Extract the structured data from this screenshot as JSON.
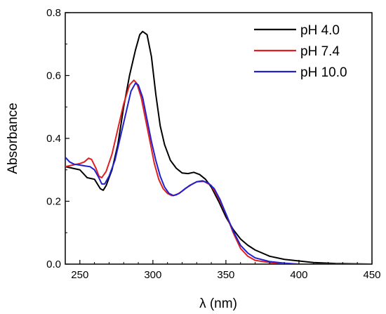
{
  "chart_data": {
    "type": "line",
    "title": "",
    "xlabel": "λ (nm)",
    "ylabel": "Absorbance",
    "xlim": [
      240,
      450
    ],
    "ylim": [
      0.0,
      0.8
    ],
    "x_ticks": [
      250,
      300,
      350,
      400,
      450
    ],
    "y_ticks": [
      0.0,
      0.2,
      0.4,
      0.6,
      0.8
    ],
    "x_tick_labels": [
      "250",
      "300",
      "350",
      "400",
      "450"
    ],
    "y_tick_labels": [
      "0.0",
      "0.2",
      "0.4",
      "0.6",
      "0.8"
    ],
    "grid": false,
    "legend_position": "top-right",
    "series": [
      {
        "name": "pH 4.0",
        "color": "#000000",
        "points": [
          [
            240,
            0.31
          ],
          [
            245,
            0.305
          ],
          [
            250,
            0.3
          ],
          [
            255,
            0.275
          ],
          [
            260,
            0.27
          ],
          [
            264,
            0.24
          ],
          [
            266,
            0.235
          ],
          [
            268,
            0.25
          ],
          [
            272,
            0.3
          ],
          [
            276,
            0.38
          ],
          [
            280,
            0.5
          ],
          [
            284,
            0.6
          ],
          [
            288,
            0.68
          ],
          [
            291,
            0.73
          ],
          [
            293,
            0.74
          ],
          [
            296,
            0.73
          ],
          [
            299,
            0.66
          ],
          [
            302,
            0.54
          ],
          [
            305,
            0.44
          ],
          [
            308,
            0.38
          ],
          [
            312,
            0.33
          ],
          [
            316,
            0.305
          ],
          [
            320,
            0.29
          ],
          [
            324,
            0.288
          ],
          [
            328,
            0.292
          ],
          [
            332,
            0.285
          ],
          [
            336,
            0.27
          ],
          [
            340,
            0.245
          ],
          [
            345,
            0.2
          ],
          [
            350,
            0.15
          ],
          [
            355,
            0.11
          ],
          [
            360,
            0.08
          ],
          [
            365,
            0.06
          ],
          [
            370,
            0.045
          ],
          [
            380,
            0.025
          ],
          [
            390,
            0.015
          ],
          [
            400,
            0.01
          ],
          [
            410,
            0.005
          ],
          [
            425,
            0.002
          ],
          [
            450,
            0.0
          ]
        ]
      },
      {
        "name": "pH 7.4",
        "color": "#e02020",
        "points": [
          [
            240,
            0.31
          ],
          [
            245,
            0.315
          ],
          [
            250,
            0.32
          ],
          [
            253,
            0.325
          ],
          [
            256,
            0.337
          ],
          [
            258,
            0.333
          ],
          [
            261,
            0.305
          ],
          [
            263,
            0.28
          ],
          [
            265,
            0.275
          ],
          [
            268,
            0.295
          ],
          [
            272,
            0.35
          ],
          [
            276,
            0.43
          ],
          [
            280,
            0.51
          ],
          [
            284,
            0.57
          ],
          [
            287,
            0.585
          ],
          [
            289,
            0.575
          ],
          [
            292,
            0.53
          ],
          [
            295,
            0.46
          ],
          [
            298,
            0.39
          ],
          [
            301,
            0.32
          ],
          [
            304,
            0.27
          ],
          [
            307,
            0.24
          ],
          [
            310,
            0.225
          ],
          [
            313,
            0.218
          ],
          [
            316,
            0.22
          ],
          [
            320,
            0.232
          ],
          [
            325,
            0.25
          ],
          [
            330,
            0.262
          ],
          [
            335,
            0.263
          ],
          [
            340,
            0.25
          ],
          [
            345,
            0.21
          ],
          [
            350,
            0.16
          ],
          [
            355,
            0.1
          ],
          [
            360,
            0.05
          ],
          [
            365,
            0.025
          ],
          [
            370,
            0.012
          ],
          [
            380,
            0.005
          ],
          [
            390,
            0.002
          ],
          [
            400,
            0.0
          ],
          [
            450,
            0.0
          ]
        ]
      },
      {
        "name": "pH 10.0",
        "color": "#2020d0",
        "points": [
          [
            240,
            0.34
          ],
          [
            243,
            0.325
          ],
          [
            246,
            0.318
          ],
          [
            250,
            0.315
          ],
          [
            254,
            0.312
          ],
          [
            257,
            0.31
          ],
          [
            260,
            0.3
          ],
          [
            263,
            0.275
          ],
          [
            265,
            0.255
          ],
          [
            267,
            0.255
          ],
          [
            270,
            0.28
          ],
          [
            274,
            0.33
          ],
          [
            278,
            0.41
          ],
          [
            282,
            0.49
          ],
          [
            285,
            0.55
          ],
          [
            288,
            0.575
          ],
          [
            290,
            0.57
          ],
          [
            293,
            0.53
          ],
          [
            296,
            0.46
          ],
          [
            299,
            0.39
          ],
          [
            302,
            0.33
          ],
          [
            305,
            0.28
          ],
          [
            308,
            0.245
          ],
          [
            311,
            0.225
          ],
          [
            314,
            0.218
          ],
          [
            318,
            0.225
          ],
          [
            322,
            0.24
          ],
          [
            326,
            0.252
          ],
          [
            330,
            0.262
          ],
          [
            334,
            0.265
          ],
          [
            338,
            0.258
          ],
          [
            342,
            0.24
          ],
          [
            346,
            0.205
          ],
          [
            350,
            0.16
          ],
          [
            355,
            0.105
          ],
          [
            360,
            0.06
          ],
          [
            365,
            0.035
          ],
          [
            370,
            0.02
          ],
          [
            380,
            0.008
          ],
          [
            390,
            0.003
          ],
          [
            400,
            0.0
          ],
          [
            450,
            0.0
          ]
        ]
      }
    ]
  }
}
